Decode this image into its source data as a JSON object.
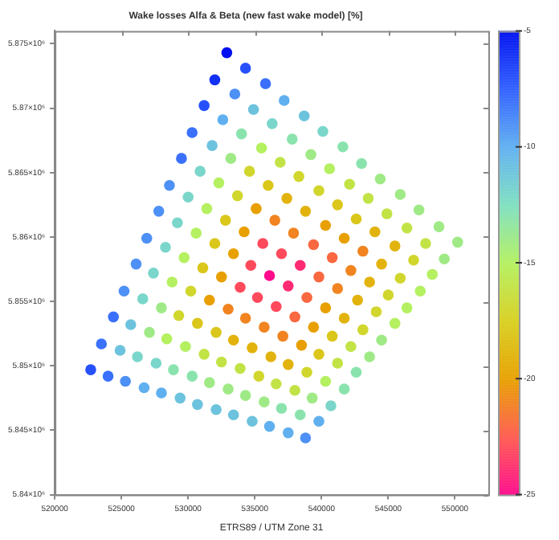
{
  "chart_data": {
    "type": "scatter",
    "title": "Wake losses Alfa & Beta (new fast wake model) [%]",
    "xlabel": "ETRS89 / UTM Zone 31",
    "marker": "circle",
    "xlim": [
      520000,
      552500
    ],
    "xticks": [
      520000,
      525000,
      530000,
      535000,
      540000,
      545000,
      550000
    ],
    "ylim": [
      5840000,
      5876000
    ],
    "yticks": [
      {
        "value": 5840000,
        "label": "5.84×10⁶"
      },
      {
        "value": 5845000,
        "label": "5.845×10⁶"
      },
      {
        "value": 5850000,
        "label": "5.85×10⁶"
      },
      {
        "value": 5855000,
        "label": "5.855×10⁶"
      },
      {
        "value": 5860000,
        "label": "5.86×10⁶"
      },
      {
        "value": 5865000,
        "label": "5.865×10⁶"
      },
      {
        "value": 5870000,
        "label": "5.87×10⁶"
      },
      {
        "value": 5875000,
        "label": "5.875×10⁶"
      }
    ],
    "clim": [
      -25,
      -5
    ],
    "cticks": [
      -25,
      -20,
      -15,
      -10,
      -5
    ],
    "x": [
      532900,
      534300,
      535800,
      537200,
      538700,
      540100,
      541600,
      543000,
      544400,
      545900,
      547300,
      548800,
      550200,
      532000,
      533500,
      534900,
      536300,
      537800,
      539200,
      540600,
      542100,
      543500,
      544900,
      546400,
      547800,
      549200,
      531200,
      532600,
      534000,
      535500,
      536900,
      538300,
      539800,
      541200,
      542600,
      544000,
      545500,
      546900,
      548300,
      530300,
      531800,
      533200,
      534600,
      536000,
      537400,
      538800,
      540300,
      541700,
      543100,
      544500,
      545900,
      547400,
      529500,
      530900,
      532300,
      533700,
      535100,
      536500,
      537900,
      539400,
      540800,
      542200,
      543600,
      545000,
      546400,
      528600,
      530000,
      531400,
      532800,
      534200,
      535600,
      537000,
      538400,
      539800,
      541200,
      542700,
      544100,
      545500,
      527800,
      529200,
      530600,
      532000,
      533400,
      534700,
      536100,
      537500,
      538900,
      540300,
      541700,
      543100,
      544500,
      526900,
      528300,
      529700,
      531100,
      532500,
      533900,
      535200,
      536600,
      538000,
      539400,
      540800,
      542200,
      543600,
      526100,
      527400,
      528800,
      530200,
      531600,
      533000,
      534300,
      535700,
      537100,
      538500,
      539800,
      541200,
      542600,
      525200,
      526600,
      528000,
      529300,
      530700,
      532100,
      533400,
      534800,
      536200,
      537500,
      538900,
      540300,
      541700,
      524400,
      525700,
      527100,
      528400,
      529800,
      531200,
      532500,
      533900,
      535300,
      536600,
      538000,
      539300,
      540700,
      523500,
      524900,
      526200,
      527600,
      528900,
      530300,
      531600,
      533000,
      534300,
      535700,
      537000,
      538400,
      539800,
      522700,
      524000,
      525300,
      526700,
      528000,
      529400,
      530700,
      532100,
      533400,
      534800,
      536100,
      537500,
      538800
    ],
    "values": [
      5874300,
      5873100,
      5871900,
      5870600,
      5869400,
      5868200,
      5867000,
      5865700,
      5864500,
      5863300,
      5862100,
      5860800,
      5859600,
      5872200,
      5871100,
      5869900,
      5868800,
      5867600,
      5866400,
      5865300,
      5864100,
      5863000,
      5861800,
      5860700,
      5859500,
      5858300,
      5870200,
      5869100,
      5868000,
      5866900,
      5865800,
      5864700,
      5863600,
      5862500,
      5861400,
      5860400,
      5859300,
      5858200,
      5857100,
      5868100,
      5867100,
      5866100,
      5865100,
      5864000,
      5863000,
      5862000,
      5860900,
      5859900,
      5858900,
      5857900,
      5856800,
      5855800,
      5866100,
      5865100,
      5864200,
      5863200,
      5862200,
      5861300,
      5860300,
      5859400,
      5858400,
      5857400,
      5856500,
      5855500,
      5854500,
      5864000,
      5863100,
      5862200,
      5861300,
      5860400,
      5859500,
      5858700,
      5857800,
      5856900,
      5856000,
      5855100,
      5854200,
      5853300,
      5862000,
      5861100,
      5860300,
      5859500,
      5858700,
      5857800,
      5857000,
      5856200,
      5855300,
      5854500,
      5853700,
      5852800,
      5852000,
      5859900,
      5859200,
      5858400,
      5857600,
      5856900,
      5856100,
      5855300,
      5854600,
      5853800,
      5853000,
      5852300,
      5851500,
      5850700,
      5857900,
      5857200,
      5856500,
      5855800,
      5855100,
      5854400,
      5853700,
      5853000,
      5852300,
      5851600,
      5850900,
      5850200,
      5849500,
      5855800,
      5855200,
      5854500,
      5853900,
      5853300,
      5852600,
      5852000,
      5851400,
      5850700,
      5850100,
      5849500,
      5848800,
      5848200,
      5853800,
      5853200,
      5852600,
      5852100,
      5851500,
      5850900,
      5850300,
      5849800,
      5849200,
      5848600,
      5848100,
      5847500,
      5846900,
      5851700,
      5851200,
      5850700,
      5850200,
      5849700,
      5849200,
      5848700,
      5848200,
      5847700,
      5847200,
      5846700,
      5846200,
      5845700,
      5849700,
      5849200,
      5848800,
      5848300,
      5847900,
      5847500,
      5847000,
      5846600,
      5846200,
      5845700,
      5845300,
      5844800,
      5844400
    ],
    "cvalues": [
      -5,
      -7,
      -8,
      -10,
      -11,
      -12,
      -13,
      -13,
      -14,
      -14,
      -14,
      -14,
      -14,
      -6,
      -9,
      -11,
      -12,
      -13,
      -14,
      -15,
      -16,
      -16,
      -16,
      -16,
      -16,
      -14,
      -7,
      -10,
      -13,
      -15,
      -16,
      -17,
      -17,
      -18,
      -18,
      -19,
      -19,
      -17,
      -15,
      -8,
      -11,
      -14,
      -17,
      -18,
      -19,
      -19,
      -20,
      -20,
      -21,
      -19,
      -17,
      -15,
      -8,
      -12,
      -15,
      -17,
      -20,
      -21,
      -21,
      -22,
      -22,
      -21,
      -19,
      -17,
      -15,
      -9,
      -12,
      -15,
      -18,
      -20,
      -23,
      -23,
      -24,
      -22,
      -21,
      -19,
      -17,
      -15,
      -9,
      -12,
      -15,
      -18,
      -20,
      -23,
      -25,
      -24,
      -22,
      -20,
      -19,
      -17,
      -14,
      -9,
      -12,
      -15,
      -18,
      -20,
      -23,
      -23,
      -23,
      -22,
      -20,
      -18,
      -16,
      -14,
      -9,
      -12,
      -15,
      -17,
      -20,
      -21,
      -21,
      -21,
      -21,
      -20,
      -18,
      -16,
      -13,
      -9,
      -12,
      -14,
      -17,
      -18,
      -18,
      -19,
      -19,
      -19,
      -19,
      -17,
      -15,
      -13,
      -8,
      -11,
      -14,
      -15,
      -15,
      -16,
      -16,
      -16,
      -17,
      -16,
      -16,
      -14,
      -12,
      -8,
      -11,
      -12,
      -12,
      -13,
      -13,
      -14,
      -14,
      -14,
      -14,
      -13,
      -13,
      -10,
      -7,
      -8,
      -9,
      -10,
      -10,
      -11,
      -11,
      -11,
      -11,
      -11,
      -10,
      -10,
      -9
    ]
  }
}
